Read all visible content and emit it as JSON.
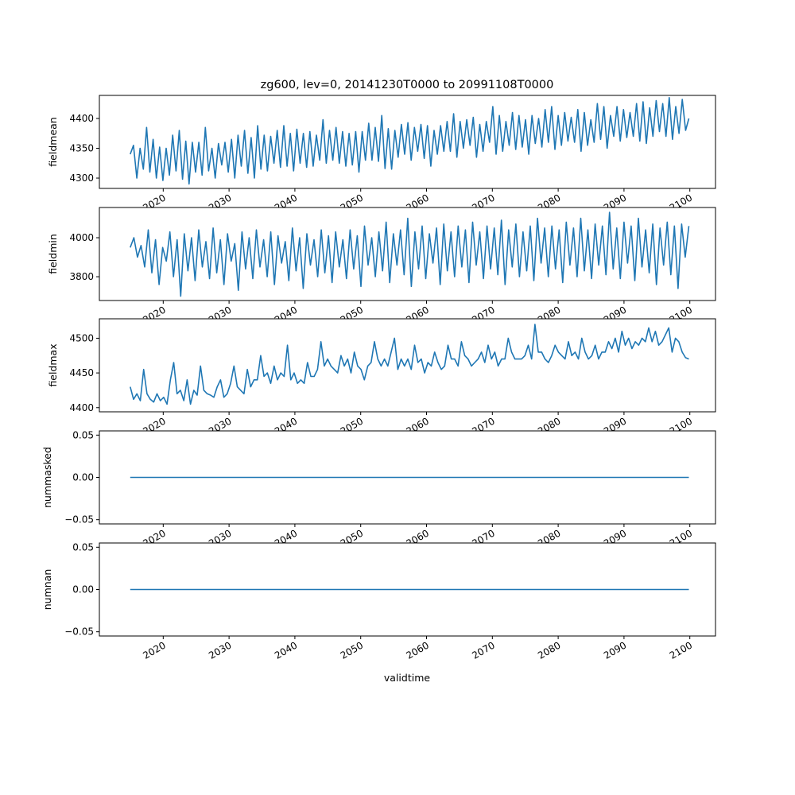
{
  "chart_data": {
    "type": "line",
    "title": "zg600, lev=0, 20141230T0000 to 20991108T0000",
    "xlabel": "validtime",
    "xlim": [
      2010.3,
      2103.9
    ],
    "x_range": [
      2014.99,
      2099.85
    ],
    "xticks": [
      2020,
      2030,
      2040,
      2050,
      2060,
      2070,
      2080,
      2090,
      2100
    ],
    "xtick_labels": [
      "2020",
      "2030",
      "2040",
      "2050",
      "2060",
      "2070",
      "2080",
      "2090",
      "2100"
    ],
    "line_color": "#1f77b4",
    "grid": false,
    "panels": [
      {
        "ylabel": "fieldmean",
        "ylim": [
          4282.7,
          4438.7
        ],
        "yticks": [
          4300,
          4350,
          4400
        ],
        "ytick_labels": [
          "4300",
          "4350",
          "4400"
        ],
        "values": [
          4340,
          4355,
          4300,
          4350,
          4315,
          4385,
          4310,
          4365,
          4300,
          4352,
          4296,
          4350,
          4305,
          4372,
          4312,
          4380,
          4298,
          4362,
          4290,
          4360,
          4310,
          4360,
          4305,
          4385,
          4312,
          4350,
          4300,
          4358,
          4322,
          4360,
          4310,
          4365,
          4300,
          4372,
          4320,
          4380,
          4308,
          4368,
          4300,
          4388,
          4315,
          4372,
          4312,
          4370,
          4325,
          4380,
          4318,
          4388,
          4320,
          4375,
          4312,
          4382,
          4325,
          4375,
          4318,
          4378,
          4320,
          4372,
          4330,
          4398,
          4325,
          4380,
          4330,
          4385,
          4325,
          4378,
          4320,
          4375,
          4322,
          4378,
          4310,
          4378,
          4330,
          4392,
          4330,
          4385,
          4328,
          4405,
          4316,
          4383,
          4315,
          4380,
          4335,
          4390,
          4340,
          4393,
          4330,
          4385,
          4345,
          4390,
          4333,
          4388,
          4320,
          4380,
          4340,
          4388,
          4345,
          4395,
          4345,
          4408,
          4335,
          4395,
          4350,
          4398,
          4355,
          4402,
          4335,
          4390,
          4345,
          4395,
          4360,
          4420,
          4340,
          4405,
          4345,
          4395,
          4355,
          4410,
          4348,
          4405,
          4352,
          4398,
          4340,
          4405,
          4358,
          4400,
          4352,
          4415,
          4360,
          4420,
          4348,
          4405,
          4355,
          4410,
          4362,
          4402,
          4360,
          4415,
          4345,
          4410,
          4355,
          4398,
          4360,
          4425,
          4365,
          4420,
          4350,
          4405,
          4370,
          4420,
          4362,
          4415,
          4368,
          4410,
          4370,
          4425,
          4362,
          4428,
          4358,
          4418,
          4370,
          4430,
          4378,
          4425,
          4370,
          4435,
          4365,
          4420,
          4375,
          4432,
          4380,
          4400
        ]
      },
      {
        "ylabel": "fieldmin",
        "ylim": [
          3678,
          4155
        ],
        "yticks": [
          3800,
          4000
        ],
        "ytick_labels": [
          "3800",
          "4000"
        ],
        "values": [
          3950,
          4000,
          3900,
          3960,
          3850,
          4040,
          3820,
          3990,
          3760,
          3950,
          3880,
          4030,
          3800,
          3990,
          3700,
          4020,
          3830,
          4000,
          3780,
          4040,
          3850,
          3980,
          3790,
          4050,
          3820,
          3990,
          3760,
          4020,
          3880,
          3970,
          3730,
          4030,
          3840,
          4000,
          3790,
          4040,
          3850,
          3990,
          3800,
          4030,
          3760,
          4010,
          3870,
          3980,
          3780,
          4050,
          3830,
          4000,
          3740,
          4020,
          3860,
          3990,
          3800,
          4040,
          3820,
          4010,
          3770,
          4030,
          3850,
          3990,
          3790,
          4040,
          3840,
          4010,
          3750,
          4060,
          3860,
          4000,
          3800,
          4030,
          3830,
          4080,
          3770,
          4020,
          3860,
          4040,
          3810,
          4100,
          3750,
          4030,
          3840,
          4060,
          3790,
          4020,
          3870,
          4050,
          3760,
          4070,
          3830,
          4030,
          3800,
          4060,
          3850,
          4040,
          3770,
          4080,
          3860,
          4030,
          3790,
          4060,
          3840,
          4050,
          3810,
          4090,
          3760,
          4040,
          3850,
          4070,
          3800,
          4030,
          3830,
          4060,
          3780,
          4100,
          3870,
          4050,
          3800,
          4060,
          3840,
          4040,
          3770,
          4080,
          3860,
          4050,
          3800,
          4100,
          3830,
          4040,
          3790,
          4070,
          3860,
          4060,
          3810,
          4130,
          3840,
          4050,
          3790,
          4080,
          3870,
          4060,
          3780,
          4100,
          3850,
          4040,
          3820,
          4070,
          3760,
          4050,
          3860,
          4080,
          3810,
          4060,
          3740,
          4070,
          3900,
          4060
        ]
      },
      {
        "ylabel": "fieldmax",
        "ylim": [
          4394,
          4528
        ],
        "yticks": [
          4400,
          4450,
          4500
        ],
        "ytick_labels": [
          "4400",
          "4450",
          "4500"
        ],
        "values": [
          4430,
          4412,
          4420,
          4410,
          4455,
          4420,
          4412,
          4408,
          4420,
          4410,
          4415,
          4405,
          4440,
          4465,
          4420,
          4425,
          4410,
          4440,
          4405,
          4425,
          4418,
          4460,
          4425,
          4420,
          4418,
          4415,
          4430,
          4440,
          4415,
          4420,
          4435,
          4460,
          4430,
          4425,
          4420,
          4455,
          4430,
          4440,
          4440,
          4475,
          4445,
          4450,
          4435,
          4460,
          4440,
          4450,
          4445,
          4490,
          4440,
          4450,
          4435,
          4440,
          4435,
          4465,
          4445,
          4445,
          4455,
          4495,
          4460,
          4470,
          4460,
          4455,
          4450,
          4475,
          4460,
          4470,
          4450,
          4480,
          4460,
          4455,
          4440,
          4460,
          4465,
          4495,
          4470,
          4460,
          4470,
          4460,
          4480,
          4500,
          4455,
          4470,
          4460,
          4470,
          4455,
          4490,
          4465,
          4470,
          4450,
          4465,
          4460,
          4480,
          4465,
          4455,
          4460,
          4490,
          4470,
          4470,
          4460,
          4495,
          4475,
          4470,
          4460,
          4465,
          4470,
          4480,
          4465,
          4490,
          4470,
          4480,
          4460,
          4470,
          4470,
          4500,
          4480,
          4470,
          4470,
          4470,
          4475,
          4490,
          4470,
          4520,
          4480,
          4480,
          4470,
          4465,
          4475,
          4490,
          4480,
          4475,
          4470,
          4495,
          4475,
          4480,
          4470,
          4500,
          4480,
          4470,
          4475,
          4490,
          4470,
          4480,
          4480,
          4495,
          4485,
          4500,
          4480,
          4510,
          4490,
          4500,
          4485,
          4495,
          4490,
          4500,
          4495,
          4515,
          4495,
          4510,
          4490,
          4495,
          4505,
          4515,
          4480,
          4500,
          4495,
          4480,
          4472,
          4470
        ]
      },
      {
        "ylabel": "nummasked",
        "ylim": [
          -0.055,
          0.055
        ],
        "yticks": [
          -0.05,
          0.0,
          0.05
        ],
        "ytick_labels": [
          "−0.05",
          "0.00",
          "0.05"
        ],
        "values": [
          0,
          0
        ]
      },
      {
        "ylabel": "numnan",
        "ylim": [
          -0.055,
          0.055
        ],
        "yticks": [
          -0.05,
          0.0,
          0.05
        ],
        "ytick_labels": [
          "−0.05",
          "0.00",
          "0.05"
        ],
        "values": [
          0,
          0
        ]
      }
    ]
  }
}
